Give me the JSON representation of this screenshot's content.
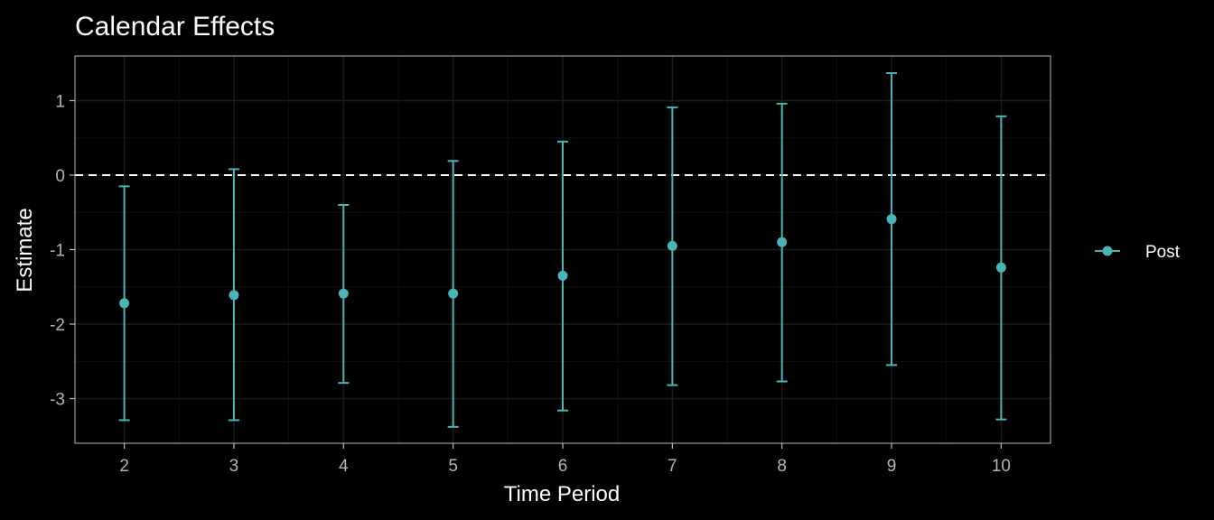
{
  "chart_data": {
    "type": "errorbar",
    "title": "Calendar Effects",
    "xlabel": "Time Period",
    "ylabel": "Estimate",
    "x": [
      2,
      3,
      4,
      5,
      6,
      7,
      8,
      9,
      10
    ],
    "xlim": [
      1.55,
      10.45
    ],
    "ylim": [
      -3.6,
      1.6
    ],
    "yticks": [
      -3,
      -2,
      -1,
      0,
      1
    ],
    "series": [
      {
        "name": "Post",
        "color": "#4ab5b8",
        "estimate": [
          -1.72,
          -1.61,
          -1.59,
          -1.59,
          -1.35,
          -0.95,
          -0.9,
          -0.59,
          -1.24
        ],
        "lower": [
          -3.29,
          -3.29,
          -2.79,
          -3.38,
          -3.16,
          -2.82,
          -2.77,
          -2.55,
          -3.28
        ],
        "upper": [
          -0.15,
          0.08,
          -0.4,
          0.19,
          0.45,
          0.91,
          0.96,
          1.37,
          0.79
        ]
      }
    ],
    "reference_line": {
      "y": 0,
      "style": "dashed",
      "color": "#ffffff"
    },
    "grid": true,
    "legend_position": "right",
    "theme": {
      "background": "#000000",
      "panel_border": "#bdbdbd",
      "grid_major": "#1c1c1c",
      "grid_minor": "#0f0f0f"
    }
  }
}
